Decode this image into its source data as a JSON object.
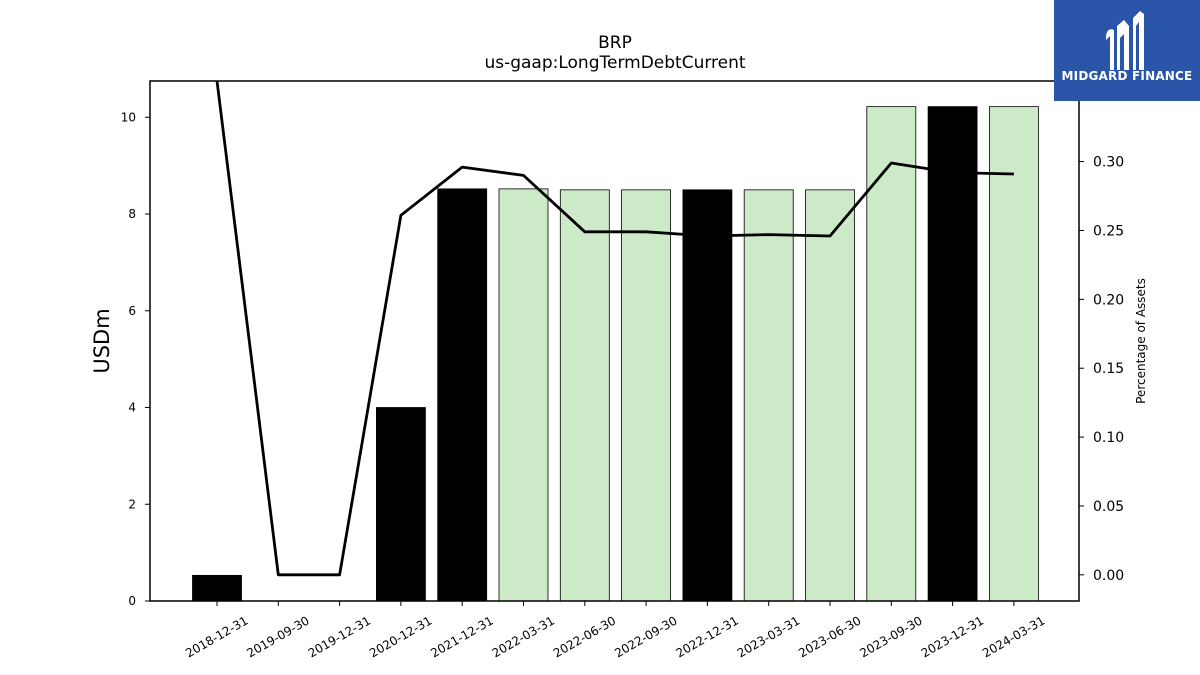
{
  "logo": {
    "text": "MIDGARD FINANCE",
    "background": "#2b55a8"
  },
  "chart_data": {
    "type": "bar",
    "title": "BRP",
    "subtitle": "us-gaap:LongTermDebtCurrent",
    "ylabel": "USDm",
    "ylabel_right": "Percentage of Assets",
    "categories": [
      "2018-12-31",
      "2019-09-30",
      "2019-12-31",
      "2020-12-31",
      "2021-12-31",
      "2022-03-31",
      "2022-06-30",
      "2022-09-30",
      "2022-12-31",
      "2023-03-31",
      "2023-06-30",
      "2023-09-30",
      "2023-12-31",
      "2024-03-31"
    ],
    "series": [
      {
        "values": [
          0.53,
          0,
          0,
          4.0,
          8.52,
          8.52,
          8.5,
          8.5,
          8.5,
          8.5,
          8.5,
          10.22,
          10.22,
          10.22
        ],
        "colors": [
          "#000000",
          "#000000",
          "#000000",
          "#000000",
          "#000000",
          "#cdeac8",
          "#cdeac8",
          "#cdeac8",
          "#000000",
          "#cdeac8",
          "#cdeac8",
          "#cdeac8",
          "#000000",
          "#cdeac8"
        ]
      },
      {
        "axis": "right",
        "type": "line",
        "color": "#000000",
        "values": [
          0.37,
          0.0,
          0.0,
          0.261,
          0.296,
          0.29,
          0.249,
          0.249,
          0.246,
          0.247,
          0.246,
          0.299,
          0.292,
          0.291
        ]
      }
    ],
    "ylim": [
      0,
      10.75
    ],
    "ylim_right": [
      -0.019,
      0.3585
    ],
    "yticks": [
      "0",
      "2",
      "4",
      "6",
      "8",
      "10"
    ],
    "yticks_right": [
      "0.00",
      "0.05",
      "0.10",
      "0.15",
      "0.20",
      "0.25",
      "0.30"
    ],
    "grid": false,
    "bar_edge_color": "#000000"
  }
}
